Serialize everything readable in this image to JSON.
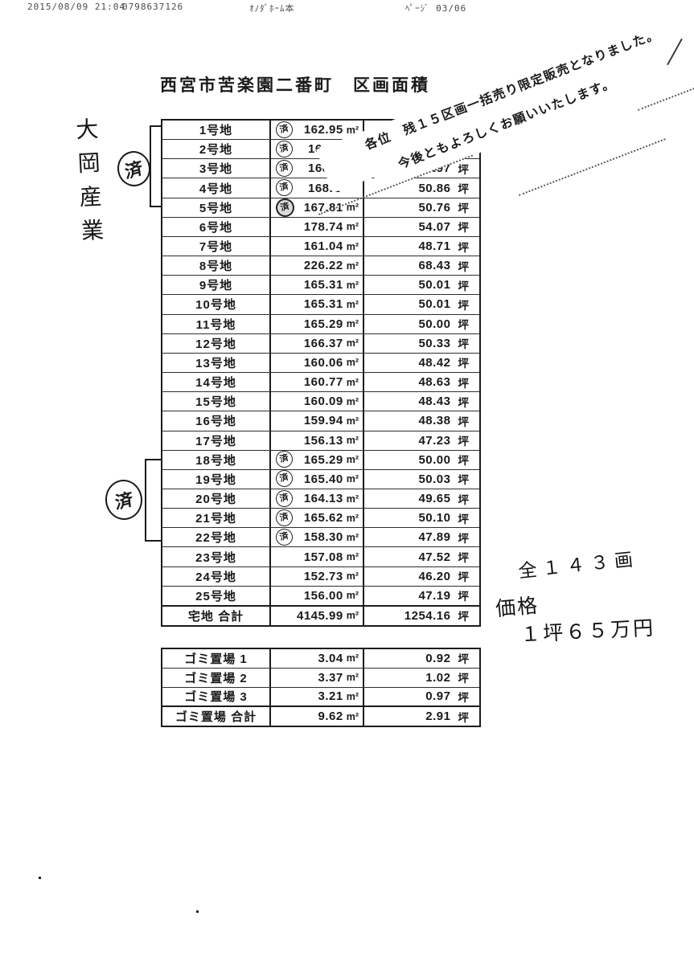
{
  "fax_header": {
    "datetime": "2015/08/09 21:04",
    "fax_number": "0798637126",
    "sender": "ｵﾉﾀﾞﾎｰﾑ本",
    "page": "ﾍﾟｰｼﾞ 03/06"
  },
  "title": "西宮市苦楽園二番町　区画面積",
  "stamp_char": "済",
  "annotations": {
    "company_vertical": "大岡産業",
    "done_char": "済",
    "note_line1": "各位　残１５区画一括売り限定販売となりました。",
    "note_line2": "今後ともよろしくお願いいたします。",
    "total_lots_note": "全１４３画",
    "price_label": "価格",
    "price_value": "１坪６５万円"
  },
  "main_table": {
    "rows": [
      {
        "label": "1号地",
        "stamp": true,
        "m2": "162.95",
        "m2_unit": "m²",
        "tsubo": "",
        "tsubo_unit": ""
      },
      {
        "label": "2号地",
        "stamp": true,
        "cut": true,
        "m2": "16",
        "m2_unit": "",
        "tsubo": "",
        "tsubo_unit": ""
      },
      {
        "label": "3号地",
        "stamp": true,
        "cut": true,
        "m2": "168.",
        "m2_unit": "",
        "tsubo": "50.97",
        "tsubo_unit": "坪"
      },
      {
        "label": "4号地",
        "stamp": true,
        "cut": true,
        "m2": "168.1",
        "m2_unit": "",
        "tsubo": "50.86",
        "tsubo_unit": "坪"
      },
      {
        "label": "5号地",
        "stamp": true,
        "dark": true,
        "m2": "167.81",
        "m2_unit": "m²",
        "tsubo": "50.76",
        "tsubo_unit": "坪"
      },
      {
        "label": "6号地",
        "m2": "178.74",
        "m2_unit": "m²",
        "tsubo": "54.07",
        "tsubo_unit": "坪"
      },
      {
        "label": "7号地",
        "m2": "161.04",
        "m2_unit": "m²",
        "tsubo": "48.71",
        "tsubo_unit": "坪"
      },
      {
        "label": "8号地",
        "m2": "226.22",
        "m2_unit": "m²",
        "tsubo": "68.43",
        "tsubo_unit": "坪"
      },
      {
        "label": "9号地",
        "m2": "165.31",
        "m2_unit": "m²",
        "tsubo": "50.01",
        "tsubo_unit": "坪"
      },
      {
        "label": "10号地",
        "m2": "165.31",
        "m2_unit": "m²",
        "tsubo": "50.01",
        "tsubo_unit": "坪"
      },
      {
        "label": "11号地",
        "m2": "165.29",
        "m2_unit": "m²",
        "tsubo": "50.00",
        "tsubo_unit": "坪"
      },
      {
        "label": "12号地",
        "m2": "166.37",
        "m2_unit": "m²",
        "tsubo": "50.33",
        "tsubo_unit": "坪"
      },
      {
        "label": "13号地",
        "m2": "160.06",
        "m2_unit": "m²",
        "tsubo": "48.42",
        "tsubo_unit": "坪"
      },
      {
        "label": "14号地",
        "m2": "160.77",
        "m2_unit": "m²",
        "tsubo": "48.63",
        "tsubo_unit": "坪"
      },
      {
        "label": "15号地",
        "m2": "160.09",
        "m2_unit": "m²",
        "tsubo": "48.43",
        "tsubo_unit": "坪"
      },
      {
        "label": "16号地",
        "m2": "159.94",
        "m2_unit": "m²",
        "tsubo": "48.38",
        "tsubo_unit": "坪"
      },
      {
        "label": "17号地",
        "m2": "156.13",
        "m2_unit": "m²",
        "tsubo": "47.23",
        "tsubo_unit": "坪"
      },
      {
        "label": "18号地",
        "stamp": true,
        "m2": "165.29",
        "m2_unit": "m²",
        "tsubo": "50.00",
        "tsubo_unit": "坪"
      },
      {
        "label": "19号地",
        "stamp": true,
        "m2": "165.40",
        "m2_unit": "m²",
        "tsubo": "50.03",
        "tsubo_unit": "坪"
      },
      {
        "label": "20号地",
        "stamp": true,
        "m2": "164.13",
        "m2_unit": "m²",
        "tsubo": "49.65",
        "tsubo_unit": "坪"
      },
      {
        "label": "21号地",
        "stamp": true,
        "m2": "165.62",
        "m2_unit": "m²",
        "tsubo": "50.10",
        "tsubo_unit": "坪"
      },
      {
        "label": "22号地",
        "stamp": true,
        "m2": "158.30",
        "m2_unit": "m²",
        "tsubo": "47.89",
        "tsubo_unit": "坪"
      },
      {
        "label": "23号地",
        "m2": "157.08",
        "m2_unit": "m²",
        "tsubo": "47.52",
        "tsubo_unit": "坪"
      },
      {
        "label": "24号地",
        "m2": "152.73",
        "m2_unit": "m²",
        "tsubo": "46.20",
        "tsubo_unit": "坪"
      },
      {
        "label": "25号地",
        "m2": "156.00",
        "m2_unit": "m²",
        "tsubo": "47.19",
        "tsubo_unit": "坪"
      }
    ],
    "total": {
      "label": "宅地 合計",
      "m2": "4145.99",
      "m2_unit": "m²",
      "tsubo": "1254.16",
      "tsubo_unit": "坪"
    }
  },
  "trash_table": {
    "rows": [
      {
        "label": "ゴミ置場 1",
        "m2": "3.04",
        "m2_unit": "m²",
        "tsubo": "0.92",
        "tsubo_unit": "坪"
      },
      {
        "label": "ゴミ置場 2",
        "m2": "3.37",
        "m2_unit": "m²",
        "tsubo": "1.02",
        "tsubo_unit": "坪"
      },
      {
        "label": "ゴミ置場 3",
        "m2": "3.21",
        "m2_unit": "m²",
        "tsubo": "0.97",
        "tsubo_unit": "坪"
      }
    ],
    "total": {
      "label": "ゴミ置場 合計",
      "m2": "9.62",
      "m2_unit": "m²",
      "tsubo": "2.91",
      "tsubo_unit": "坪"
    }
  }
}
